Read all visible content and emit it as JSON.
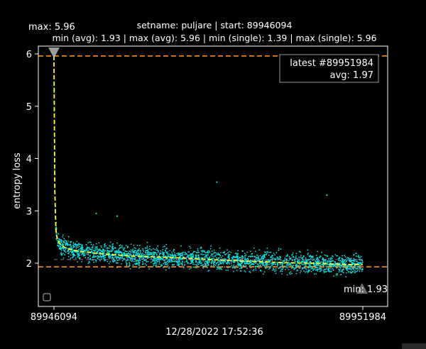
{
  "chart_data": {
    "type": "scatter",
    "title": "setname: puljare | start: 89946094",
    "subtitle": "min (avg): 1.93 | max (avg): 5.96 | min (single): 1.39 | max (single): 5.96",
    "xlabel": "12/28/2022 17:52:36",
    "ylabel": "entropy loss",
    "x_ticks": [
      "89946094",
      "89951984"
    ],
    "y_ticks": [
      2,
      3,
      4,
      5,
      6
    ],
    "xlim": [
      89946094,
      89951984
    ],
    "ylim": [
      1.2,
      6.1
    ],
    "grid": false,
    "max_avg": 5.96,
    "min_avg": 1.93,
    "min_single": 1.39,
    "max_single": 5.96,
    "max_marker_label": "max: 5.96",
    "min_marker_label": "min: 1.93",
    "legend_text": [
      "latest #89951984",
      "avg: 1.97"
    ],
    "legend_position": "top-right",
    "avg_curve": {
      "x": [
        89946094,
        89946110,
        89946130,
        89946150,
        89946200,
        89946300,
        89946450,
        89946650,
        89947000,
        89947500,
        89948000,
        89948500,
        89949000,
        89949500,
        89950000,
        89950500,
        89951000,
        89951500,
        89951984
      ],
      "y": [
        5.96,
        3.4,
        2.65,
        2.5,
        2.38,
        2.3,
        2.25,
        2.22,
        2.18,
        2.14,
        2.12,
        2.1,
        2.07,
        2.05,
        2.03,
        2.01,
        2.0,
        1.98,
        1.97
      ]
    },
    "outliers": {
      "x": [
        89949200,
        89951300,
        89946900,
        89947300
      ],
      "y": [
        3.55,
        3.3,
        2.95,
        2.9
      ]
    },
    "colors": {
      "scatter": "#00e5e5",
      "avg_line": "#ffff33",
      "threshold_line": "#ff8c1a",
      "marker": "#b8b8b8",
      "reference_line": "#b070d0"
    }
  }
}
